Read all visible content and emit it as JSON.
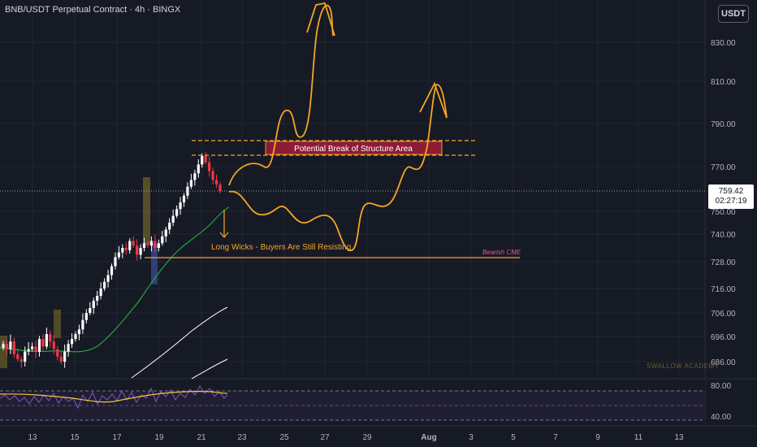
{
  "header": {
    "title": "BNB/USDT Perpetual Contract · 4h · BINGX",
    "currency_button": "USDT"
  },
  "current_price": {
    "value": "759.42",
    "countdown": "02:27:19"
  },
  "annotations": {
    "bos_label": "Potential Break of Structure Area",
    "wick_note": "Long Wicks - Buyers Are Still Resisting",
    "cme_label": "Bearish CME",
    "watermark": "SWALLOW ACADEMY"
  },
  "colors": {
    "background": "#161a25",
    "up": "#ffffff",
    "down": "#f23645",
    "drawing": "#f5a623",
    "bos_fill": "#9b1c3a",
    "ma_green": "#26a641",
    "rsi_line": "#7e57c2",
    "rsi_ma": "#f5c542"
  },
  "chart_data": {
    "type": "candlestick",
    "y_axis": {
      "price_ticks": [
        830.0,
        810.0,
        790.0,
        770.0,
        750.0,
        740.0,
        728.0,
        716.0,
        706.0,
        696.0,
        686.0
      ],
      "rsi_ticks": [
        80.0,
        40.0
      ]
    },
    "x_axis": {
      "ticks": [
        "13",
        "15",
        "17",
        "19",
        "21",
        "23",
        "25",
        "27",
        "29",
        "Aug",
        "3",
        "5",
        "7",
        "9",
        "11",
        "13"
      ]
    },
    "closes": [
      693,
      691,
      694,
      689,
      687,
      686,
      690,
      691,
      692,
      690,
      695,
      692,
      697,
      694,
      691,
      688,
      686,
      690,
      693,
      695,
      697,
      699,
      703,
      706,
      708,
      711,
      713,
      716,
      719,
      722,
      726,
      730,
      732,
      734,
      733,
      737,
      735,
      731,
      734,
      736,
      735,
      737,
      734,
      736,
      739,
      742,
      745,
      748,
      751,
      754,
      757,
      761,
      764,
      767,
      771,
      775,
      772,
      768,
      764,
      762,
      759
    ],
    "bos_zone": {
      "top": 780.5,
      "bottom": 775.5
    },
    "bos_dashed_lines": [
      781.5,
      775.5
    ],
    "bearish_cme_level": 730.5
  }
}
